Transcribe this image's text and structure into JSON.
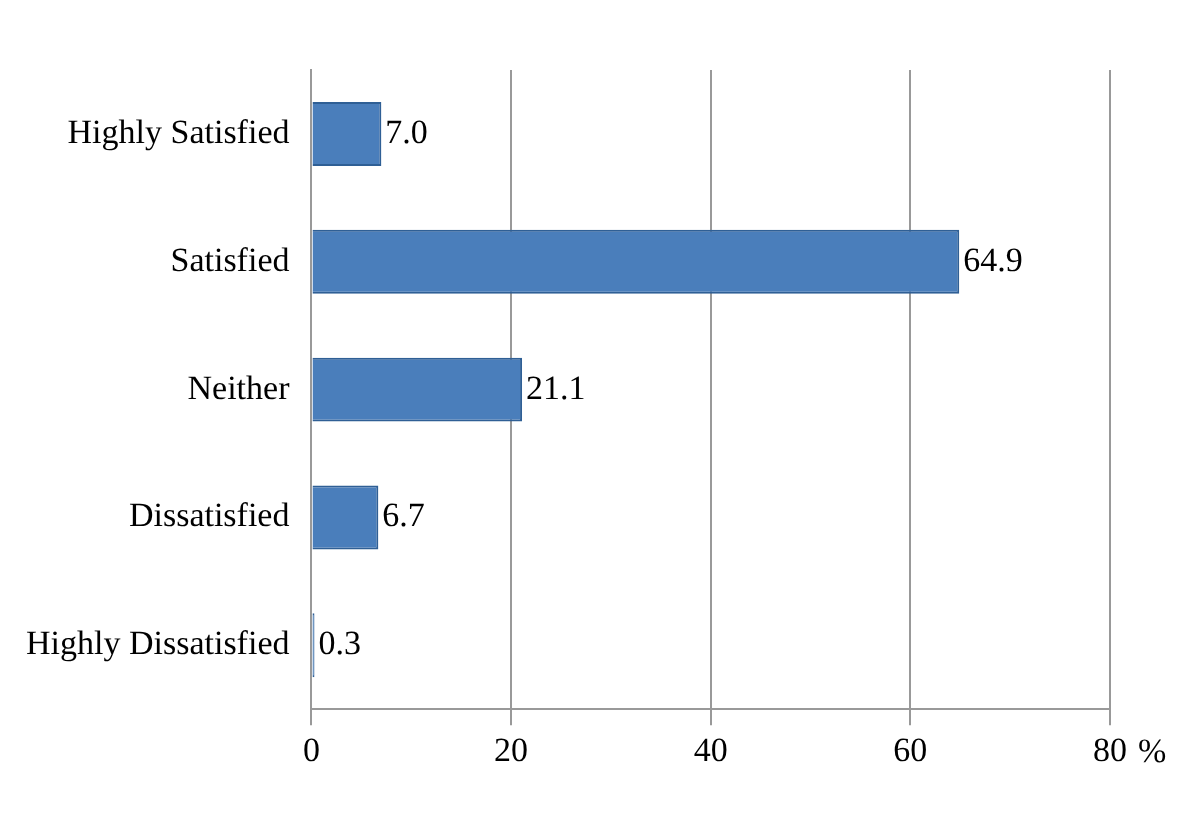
{
  "chart_data": {
    "type": "bar",
    "orientation": "horizontal",
    "xlabel": "%",
    "categories": [
      "Highly Satisfied",
      "Satisfied",
      "Neither",
      "Dissatisfied",
      "Highly Dissatisfied"
    ],
    "values": [
      7.0,
      64.9,
      21.1,
      6.7,
      0.3
    ],
    "value_labels": [
      "7.0",
      "64.9",
      "21.1",
      "6.7",
      "0.3"
    ],
    "color": "#4a7ebb",
    "xlim": [
      0,
      80
    ],
    "xticks": [
      0,
      20,
      40,
      60,
      80
    ],
    "grid": "x"
  }
}
